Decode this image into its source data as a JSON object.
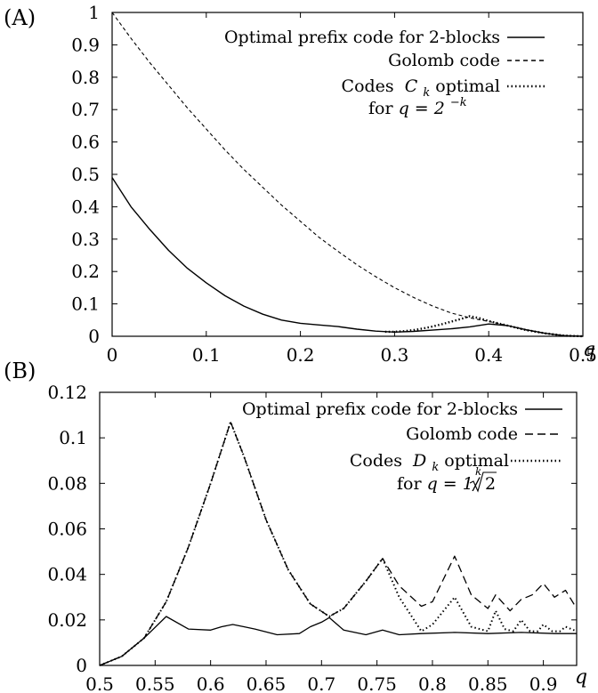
{
  "chart_data": [
    {
      "panel_label": "(A)",
      "type": "line",
      "xlabel": "q",
      "ylabel": "",
      "xlim": [
        0,
        0.5
      ],
      "ylim": [
        0,
        1
      ],
      "x_ticks": [
        "0",
        "0.1",
        "0.2",
        "0.3",
        "0.4",
        "0.5"
      ],
      "y_ticks": [
        "0",
        "0.1",
        "0.2",
        "0.3",
        "0.4",
        "0.5",
        "0.6",
        "0.7",
        "0.8",
        "0.9",
        "1"
      ],
      "grid": false,
      "legend_position": "top-right",
      "series": [
        {
          "name": "Optimal prefix code for 2-blocks",
          "style": "solid",
          "x": [
            0,
            0.02,
            0.04,
            0.06,
            0.08,
            0.1,
            0.12,
            0.14,
            0.16,
            0.18,
            0.2,
            0.22,
            0.24,
            0.26,
            0.28,
            0.3,
            0.32,
            0.34,
            0.36,
            0.38,
            0.4,
            0.42,
            0.44,
            0.46,
            0.48,
            0.5
          ],
          "values": [
            0.49,
            0.4,
            0.33,
            0.265,
            0.21,
            0.165,
            0.125,
            0.093,
            0.068,
            0.05,
            0.04,
            0.035,
            0.03,
            0.022,
            0.016,
            0.013,
            0.015,
            0.019,
            0.023,
            0.029,
            0.038,
            0.033,
            0.02,
            0.009,
            0.002,
            0
          ]
        },
        {
          "name": "Golomb code",
          "style": "dashed",
          "x": [
            0,
            0.02,
            0.04,
            0.06,
            0.08,
            0.1,
            0.12,
            0.14,
            0.16,
            0.18,
            0.2,
            0.22,
            0.24,
            0.26,
            0.28,
            0.3,
            0.32,
            0.34,
            0.36,
            0.38,
            0.4,
            0.42,
            0.44,
            0.46,
            0.48,
            0.5
          ],
          "values": [
            1.0,
            0.92,
            0.845,
            0.775,
            0.705,
            0.64,
            0.575,
            0.515,
            0.46,
            0.405,
            0.355,
            0.305,
            0.262,
            0.221,
            0.184,
            0.15,
            0.12,
            0.094,
            0.072,
            0.057,
            0.046,
            0.033,
            0.019,
            0.009,
            0.002,
            0
          ]
        },
        {
          "name": "Codes C_k optimal for q = 2^-k",
          "style": "dotted",
          "x": [
            0.29,
            0.3,
            0.31,
            0.32,
            0.33,
            0.34,
            0.35,
            0.36,
            0.37,
            0.38,
            0.39,
            0.4,
            0.42,
            0.44,
            0.46,
            0.48,
            0.5
          ],
          "values": [
            0.014,
            0.014,
            0.016,
            0.019,
            0.024,
            0.03,
            0.037,
            0.045,
            0.053,
            0.062,
            0.056,
            0.047,
            0.033,
            0.019,
            0.009,
            0.002,
            0
          ]
        }
      ]
    },
    {
      "panel_label": "(B)",
      "type": "line",
      "xlabel": "q",
      "ylabel": "",
      "xlim": [
        0.5,
        0.93
      ],
      "ylim": [
        0,
        0.12
      ],
      "x_ticks": [
        "0.5",
        "0.55",
        "0.6",
        "0.65",
        "0.7",
        "0.75",
        "0.8",
        "0.85",
        "0.9"
      ],
      "y_ticks": [
        "0",
        "0.02",
        "0.04",
        "0.06",
        "0.08",
        "0.1",
        "0.12"
      ],
      "grid": false,
      "legend_position": "top-right",
      "series": [
        {
          "name": "Optimal prefix code for 2-blocks",
          "style": "solid",
          "x": [
            0.5,
            0.52,
            0.54,
            0.56,
            0.58,
            0.6,
            0.61,
            0.62,
            0.63,
            0.64,
            0.66,
            0.68,
            0.69,
            0.7,
            0.707,
            0.72,
            0.74,
            0.755,
            0.77,
            0.79,
            0.82,
            0.85,
            0.88,
            0.91,
            0.93
          ],
          "values": [
            0,
            0.004,
            0.012,
            0.0215,
            0.016,
            0.0155,
            0.017,
            0.018,
            0.017,
            0.016,
            0.0135,
            0.014,
            0.017,
            0.019,
            0.021,
            0.0155,
            0.0135,
            0.0155,
            0.0135,
            0.014,
            0.0145,
            0.014,
            0.0145,
            0.014,
            0.014
          ]
        },
        {
          "name": "Golomb code",
          "style": "dashed",
          "x": [
            0.5,
            0.52,
            0.54,
            0.56,
            0.58,
            0.6,
            0.618,
            0.63,
            0.65,
            0.67,
            0.69,
            0.707,
            0.72,
            0.74,
            0.755,
            0.77,
            0.79,
            0.8,
            0.82,
            0.835,
            0.85,
            0.857,
            0.87,
            0.88,
            0.89,
            0.9,
            0.91,
            0.92,
            0.93
          ],
          "values": [
            0,
            0.004,
            0.012,
            0.028,
            0.052,
            0.08,
            0.107,
            0.092,
            0.064,
            0.042,
            0.027,
            0.0215,
            0.025,
            0.037,
            0.047,
            0.035,
            0.026,
            0.028,
            0.048,
            0.031,
            0.025,
            0.031,
            0.024,
            0.029,
            0.031,
            0.036,
            0.03,
            0.033,
            0.025
          ]
        },
        {
          "name": "Codes D_k optimal for q = 1/kth-root(2)",
          "style": "dotted",
          "x": [
            0.5,
            0.52,
            0.54,
            0.56,
            0.58,
            0.6,
            0.618,
            0.63,
            0.65,
            0.67,
            0.69,
            0.707,
            0.72,
            0.74,
            0.755,
            0.77,
            0.79,
            0.8,
            0.82,
            0.835,
            0.85,
            0.857,
            0.865,
            0.873,
            0.88,
            0.888,
            0.895,
            0.9,
            0.908,
            0.915,
            0.92,
            0.93
          ],
          "values": [
            0,
            0.004,
            0.012,
            0.028,
            0.052,
            0.08,
            0.107,
            0.092,
            0.064,
            0.042,
            0.027,
            0.0215,
            0.025,
            0.037,
            0.047,
            0.03,
            0.015,
            0.018,
            0.03,
            0.017,
            0.015,
            0.024,
            0.016,
            0.015,
            0.02,
            0.015,
            0.015,
            0.018,
            0.015,
            0.015,
            0.017,
            0.015
          ]
        }
      ]
    }
  ],
  "legend_a": {
    "line1": "Optimal prefix code for 2-blocks",
    "line2": "Golomb code",
    "line3": "Codes",
    "line3_var": "C",
    "line3_sub": "k",
    "line3_tail": " optimal",
    "line4_pre": "for ",
    "line4_eq": "q = 2",
    "line4_sup": "−k"
  },
  "legend_b": {
    "line1": "Optimal prefix code for 2-blocks",
    "line2": "Golomb code",
    "line3": "Codes",
    "line3_var": "D",
    "line3_sub": "k",
    "line3_tail": " optimal",
    "line4_pre": "for ",
    "line4_eq": "q = 1/",
    "line4_root_index": "k",
    "line4_root_arg": "2"
  },
  "colors": {
    "line": "#000000",
    "background": "#ffffff"
  }
}
